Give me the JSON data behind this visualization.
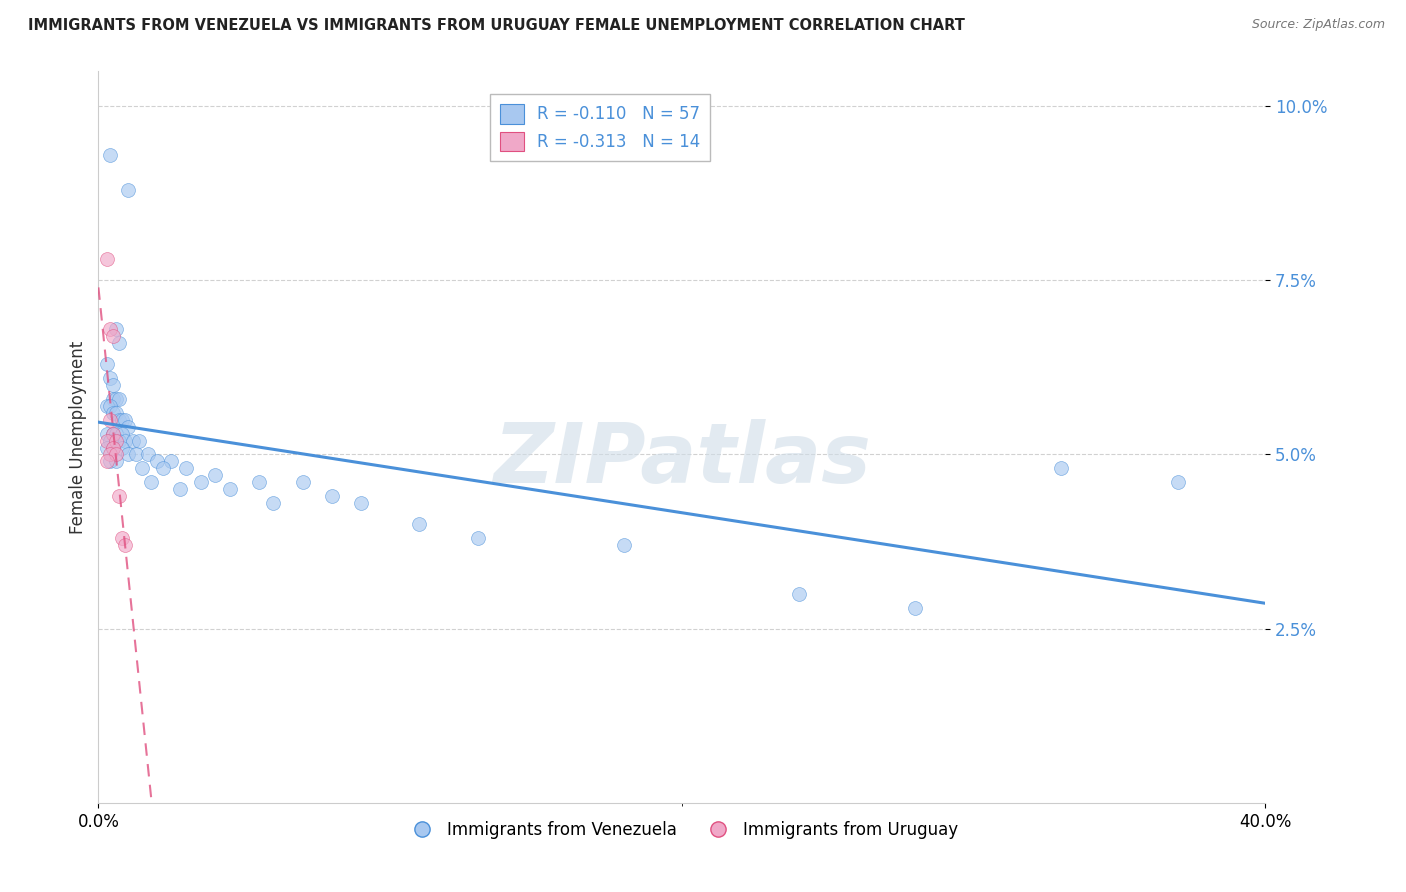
{
  "title": "IMMIGRANTS FROM VENEZUELA VS IMMIGRANTS FROM URUGUAY FEMALE UNEMPLOYMENT CORRELATION CHART",
  "source": "Source: ZipAtlas.com",
  "ylabel": "Female Unemployment",
  "xlim": [
    0.0,
    0.4
  ],
  "ylim": [
    0.0,
    0.105
  ],
  "yticks": [
    0.025,
    0.05,
    0.075,
    0.1
  ],
  "ytick_labels": [
    "2.5%",
    "5.0%",
    "7.5%",
    "10.0%"
  ],
  "xtick_left_label": "0.0%",
  "xtick_right_label": "40.0%",
  "legend_label_venezuela": "R = -0.110   N = 57",
  "legend_label_uruguay": "R = -0.313   N = 14",
  "legend_color_venezuela": "#a8c8f0",
  "legend_color_uruguay": "#f0a8c8",
  "line_color_venezuela": "#4a90d9",
  "line_color_uruguay": "#e05080",
  "text_color_blue": "#4a90d9",
  "watermark": "ZIPatlas",
  "background_color": "#ffffff",
  "grid_color": "#cccccc",
  "dot_alpha": 0.65,
  "dot_size": 100,
  "venezuela_points": [
    [
      0.004,
      0.093
    ],
    [
      0.01,
      0.088
    ],
    [
      0.006,
      0.068
    ],
    [
      0.007,
      0.066
    ],
    [
      0.003,
      0.063
    ],
    [
      0.004,
      0.061
    ],
    [
      0.005,
      0.06
    ],
    [
      0.005,
      0.058
    ],
    [
      0.006,
      0.058
    ],
    [
      0.007,
      0.058
    ],
    [
      0.003,
      0.057
    ],
    [
      0.004,
      0.057
    ],
    [
      0.005,
      0.056
    ],
    [
      0.006,
      0.056
    ],
    [
      0.007,
      0.055
    ],
    [
      0.008,
      0.055
    ],
    [
      0.009,
      0.055
    ],
    [
      0.01,
      0.054
    ],
    [
      0.003,
      0.053
    ],
    [
      0.005,
      0.053
    ],
    [
      0.006,
      0.053
    ],
    [
      0.008,
      0.053
    ],
    [
      0.004,
      0.052
    ],
    [
      0.007,
      0.052
    ],
    [
      0.009,
      0.052
    ],
    [
      0.012,
      0.052
    ],
    [
      0.014,
      0.052
    ],
    [
      0.003,
      0.051
    ],
    [
      0.005,
      0.051
    ],
    [
      0.008,
      0.051
    ],
    [
      0.01,
      0.05
    ],
    [
      0.013,
      0.05
    ],
    [
      0.017,
      0.05
    ],
    [
      0.004,
      0.049
    ],
    [
      0.006,
      0.049
    ],
    [
      0.02,
      0.049
    ],
    [
      0.025,
      0.049
    ],
    [
      0.015,
      0.048
    ],
    [
      0.022,
      0.048
    ],
    [
      0.03,
      0.048
    ],
    [
      0.04,
      0.047
    ],
    [
      0.018,
      0.046
    ],
    [
      0.035,
      0.046
    ],
    [
      0.055,
      0.046
    ],
    [
      0.07,
      0.046
    ],
    [
      0.028,
      0.045
    ],
    [
      0.045,
      0.045
    ],
    [
      0.08,
      0.044
    ],
    [
      0.06,
      0.043
    ],
    [
      0.09,
      0.043
    ],
    [
      0.11,
      0.04
    ],
    [
      0.13,
      0.038
    ],
    [
      0.18,
      0.037
    ],
    [
      0.24,
      0.03
    ],
    [
      0.28,
      0.028
    ],
    [
      0.33,
      0.048
    ],
    [
      0.37,
      0.046
    ]
  ],
  "uruguay_points": [
    [
      0.003,
      0.078
    ],
    [
      0.004,
      0.068
    ],
    [
      0.005,
      0.067
    ],
    [
      0.004,
      0.055
    ],
    [
      0.005,
      0.053
    ],
    [
      0.003,
      0.052
    ],
    [
      0.006,
      0.052
    ],
    [
      0.005,
      0.051
    ],
    [
      0.004,
      0.05
    ],
    [
      0.006,
      0.05
    ],
    [
      0.003,
      0.049
    ],
    [
      0.007,
      0.044
    ],
    [
      0.008,
      0.038
    ],
    [
      0.009,
      0.037
    ]
  ]
}
